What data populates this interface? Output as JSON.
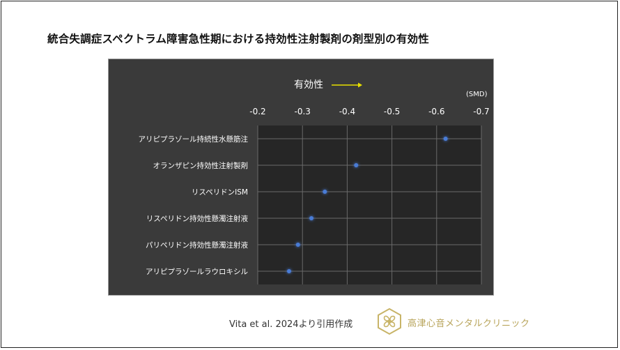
{
  "slide": {
    "title": "統合失調症スペクトラム障害急性期における持効性注射製剤の剤型別の有効性",
    "citation": "Vita et al. 2024より引用作成",
    "clinic_name": "高津心音メンタルクリニック"
  },
  "chart_data": {
    "type": "scatter",
    "title": "",
    "annotation": "有効性",
    "unit_label": "(SMD)",
    "x_axis_ticks": [
      "-0.2",
      "-0.3",
      "-0.4",
      "-0.5",
      "-0.6",
      "-0.7"
    ],
    "xlim": [
      -0.2,
      -0.7
    ],
    "x_reversed": true,
    "categories": [
      "アリピプラゾール持続性水懸筋注",
      "オランザピン持効性注射製剤",
      "リスペリドンISM",
      "リスペリドン持効性懸濁注射液",
      "パリペリドン持効性懸濁注射液",
      "アリピプラゾールラウロキシル"
    ],
    "values": [
      -0.62,
      -0.42,
      -0.35,
      -0.32,
      -0.29,
      -0.27
    ],
    "grid": true
  },
  "colors": {
    "panel_bg": "#3a3a3a",
    "plot_bg": "#262626",
    "grid": "#6a6a6a",
    "point": "#4a7bd6",
    "arrow": "#e8e000",
    "logo": "#c8b468"
  }
}
